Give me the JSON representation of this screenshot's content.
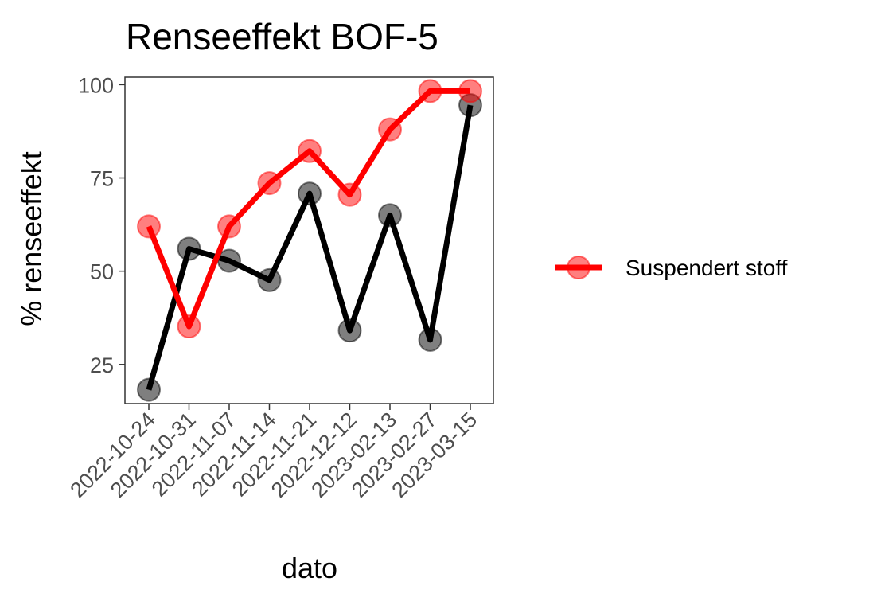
{
  "chart_data": {
    "type": "line",
    "title": "Renseeffekt BOF-5",
    "xlabel": "dato",
    "ylabel": "% renseeffekt",
    "categories": [
      "2022-10-24",
      "2022-10-31",
      "2022-11-07",
      "2022-11-14",
      "2022-11-21",
      "2022-12-12",
      "2023-02-13",
      "2023-02-27",
      "2023-03-15"
    ],
    "ylim": [
      14.5,
      102
    ],
    "yticks": [
      25,
      50,
      75,
      100
    ],
    "grid": false,
    "legend_position": "right",
    "series": [
      {
        "name": "Suspendert stoff",
        "color": "#ff0000",
        "in_legend": true,
        "values": [
          62,
          35.2,
          62,
          73.6,
          82.2,
          70.5,
          88,
          98.3,
          98.3
        ]
      },
      {
        "color": "#000000",
        "in_legend": false,
        "values": [
          18.2,
          56,
          52.8,
          47.6,
          70.8,
          34.1,
          65,
          31.6,
          94.5
        ]
      }
    ]
  }
}
